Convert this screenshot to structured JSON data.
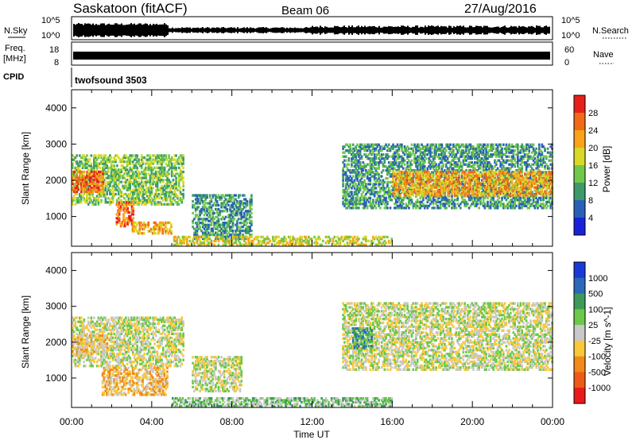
{
  "header": {
    "station": "Saskatoon (fitACF)",
    "beam": "Beam 06",
    "date": "27/Aug/2016"
  },
  "top_panels": {
    "nsky_label": "N.Sky",
    "nsky_ticks": [
      "10^5",
      "10^0"
    ],
    "nsearch_label": "N.Search",
    "nsearch_ticks": [
      "10^5",
      "10^0"
    ],
    "freq_label": "Freq.",
    "freq_unit": "[MHz]",
    "freq_ticks": [
      "18",
      "8"
    ],
    "nave_label": "Nave",
    "nave_ticks": [
      "60",
      "0"
    ],
    "cpid_label": "CPID",
    "cpid_value": "twofsound 3503"
  },
  "chart_data": [
    {
      "type": "heatmap",
      "panel": "power",
      "ylabel": "Slant Range [km]",
      "xlabel": "",
      "ylim": [
        180,
        4500
      ],
      "y_ticks": [
        1000,
        2000,
        3000,
        4000
      ],
      "xlim": [
        0,
        24
      ],
      "colorbar_label": "Power [dB]",
      "colorbar_ticks": [
        "28",
        "24",
        "20",
        "16",
        "12",
        "8",
        "4"
      ],
      "colorbar_colors": [
        "#e8201a",
        "#f06a18",
        "#f8a318",
        "#d8d828",
        "#70c84a",
        "#3e9a6a",
        "#2860b8",
        "#1a22d8"
      ],
      "regions": [
        {
          "t0": 0.0,
          "t1": 5.6,
          "r0": 1300,
          "r1": 2700,
          "level": 3
        },
        {
          "t0": 0.0,
          "t1": 1.6,
          "r0": 1650,
          "r1": 2250,
          "level": 6
        },
        {
          "t0": 2.2,
          "t1": 3.1,
          "r0": 700,
          "r1": 1400,
          "level": 6
        },
        {
          "t0": 3.0,
          "t1": 5.0,
          "r0": 500,
          "r1": 850,
          "level": 5
        },
        {
          "t0": 6.0,
          "t1": 9.0,
          "r0": 350,
          "r1": 1600,
          "level": 2
        },
        {
          "t0": 5.0,
          "t1": 16.0,
          "r0": 180,
          "r1": 450,
          "level": 4
        },
        {
          "t0": 13.5,
          "t1": 24.0,
          "r0": 1200,
          "r1": 3000,
          "level": 2
        },
        {
          "t0": 16.0,
          "t1": 24.0,
          "r0": 1550,
          "r1": 2250,
          "level": 5
        }
      ]
    },
    {
      "type": "heatmap",
      "panel": "velocity",
      "ylabel": "Slant Range [km]",
      "xlabel": "Time UT",
      "ylim": [
        180,
        4500
      ],
      "y_ticks": [
        1000,
        2000,
        3000,
        4000
      ],
      "xlim": [
        0,
        24
      ],
      "x_ticks": [
        "00:00",
        "04:00",
        "08:00",
        "12:00",
        "16:00",
        "20:00",
        "00:00"
      ],
      "colorbar_label": "Velocity [m s^-1]",
      "colorbar_ticks": [
        "1000",
        "500",
        "100",
        "25",
        "-25",
        "-100",
        "-500",
        "-1000"
      ],
      "colorbar_colors": [
        "#1a3ad8",
        "#2a6ab8",
        "#3e9a5a",
        "#6ac84a",
        "#c8c8c8",
        "#f8c838",
        "#f08a18",
        "#f05a18",
        "#e81a1a"
      ],
      "regions": [
        {
          "t0": 0.0,
          "t1": 5.6,
          "r0": 1300,
          "r1": 2700,
          "level": 4
        },
        {
          "t0": 0.0,
          "t1": 1.8,
          "r0": 1650,
          "r1": 2200,
          "level": 3
        },
        {
          "t0": 1.5,
          "t1": 4.8,
          "r0": 500,
          "r1": 1300,
          "level": 3
        },
        {
          "t0": 6.0,
          "t1": 8.5,
          "r0": 600,
          "r1": 1600,
          "level": 4
        },
        {
          "t0": 5.0,
          "t1": 16.0,
          "r0": 180,
          "r1": 450,
          "level": 5
        },
        {
          "t0": 13.5,
          "t1": 24.0,
          "r0": 1200,
          "r1": 3100,
          "level": 4
        },
        {
          "t0": 14.0,
          "t1": 15.0,
          "r0": 1800,
          "r1": 2400,
          "level": 6
        }
      ]
    }
  ]
}
